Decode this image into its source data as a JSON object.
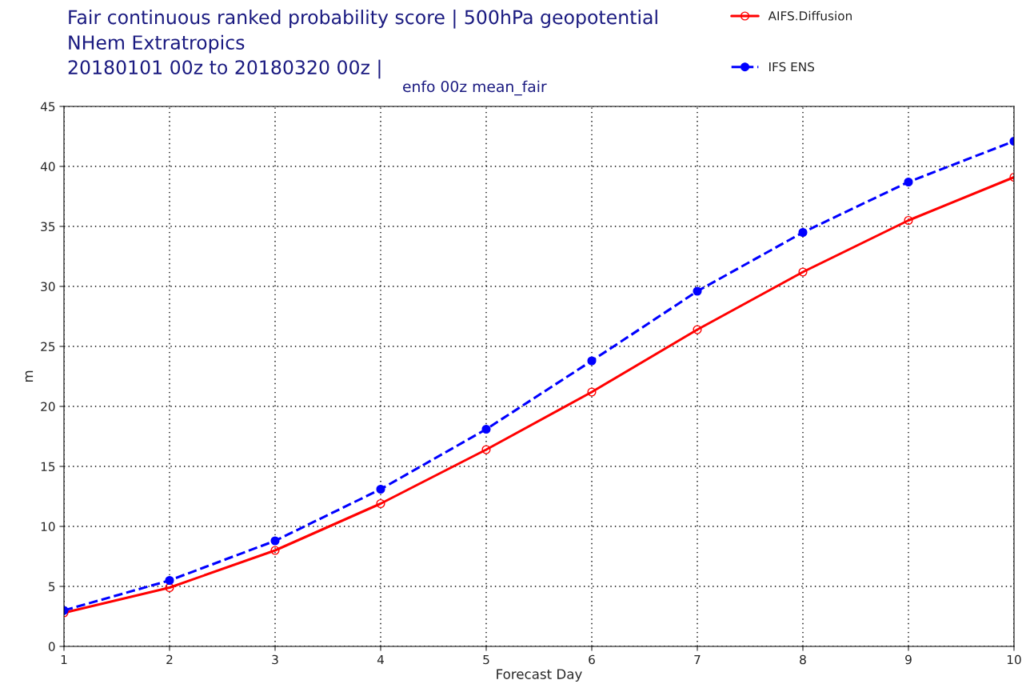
{
  "chart_data": {
    "type": "line",
    "title": "Fair continuous ranked probability score | 500hPa geopotential\nNHem Extratropics\n20180101 00z to 20180320 00z |",
    "subtitle": "enfo 00z mean_fair",
    "xlabel": "Forecast Day",
    "ylabel": "m",
    "x": [
      1,
      2,
      3,
      4,
      5,
      6,
      7,
      8,
      9,
      10
    ],
    "series": [
      {
        "name": "AIFS.Diffusion",
        "color": "#ff0000",
        "values": [
          2.8,
          4.9,
          8.0,
          11.9,
          16.4,
          21.2,
          26.4,
          31.2,
          35.5,
          39.1
        ],
        "marker": "circle",
        "line_style": "solid"
      },
      {
        "name": "IFS ENS",
        "color": "#0000ff",
        "values": [
          3.0,
          5.5,
          8.8,
          13.1,
          18.1,
          23.8,
          29.6,
          34.5,
          38.7,
          42.1
        ],
        "marker": "circle",
        "line_style": "dashed"
      }
    ],
    "xlim": [
      1,
      10
    ],
    "xticks": [
      1,
      2,
      3,
      4,
      5,
      6,
      7,
      8,
      9,
      10
    ],
    "ylim": [
      0,
      45
    ],
    "yticks": [
      0,
      5,
      10,
      15,
      20,
      25,
      30,
      35,
      40,
      45
    ],
    "grid": true,
    "legend": "top right"
  }
}
